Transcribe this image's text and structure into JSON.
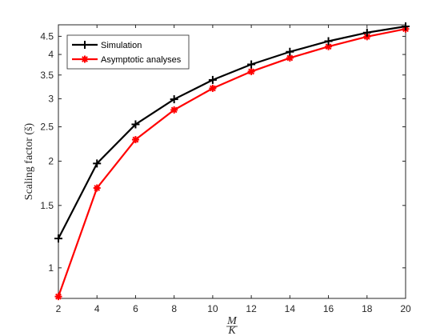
{
  "chart_data": {
    "type": "line",
    "title": "",
    "xlabel_num": "M",
    "xlabel_den": "K",
    "ylabel": "Scaling factor (š)",
    "x": [
      2,
      4,
      6,
      8,
      10,
      12,
      14,
      16,
      18,
      20
    ],
    "xlim": [
      2,
      20
    ],
    "ylim": [
      0.82,
      4.85
    ],
    "y_scale": "log",
    "xticks": [
      "2",
      "4",
      "6",
      "8",
      "10",
      "12",
      "14",
      "16",
      "18",
      "20"
    ],
    "yticks": [
      {
        "value": 1,
        "label": "1"
      },
      {
        "value": 1.5,
        "label": "1.5"
      },
      {
        "value": 2,
        "label": "2"
      },
      {
        "value": 2.5,
        "label": "2.5"
      },
      {
        "value": 3,
        "label": "3"
      },
      {
        "value": 3.5,
        "label": "3.5"
      },
      {
        "value": 4,
        "label": "4"
      },
      {
        "value": 4.5,
        "label": "4.5"
      }
    ],
    "grid": false,
    "legend_position": "top-left",
    "series": [
      {
        "name": "Simulation",
        "color": "#000000",
        "marker": "plus",
        "values": [
          1.21,
          1.97,
          2.54,
          2.99,
          3.39,
          3.75,
          4.07,
          4.36,
          4.61,
          4.8
        ]
      },
      {
        "name": "Asymptotic analyses",
        "color": "#ff0000",
        "marker": "asterisk",
        "values": [
          0.83,
          1.68,
          2.3,
          2.79,
          3.21,
          3.58,
          3.91,
          4.21,
          4.49,
          4.72
        ]
      }
    ]
  }
}
